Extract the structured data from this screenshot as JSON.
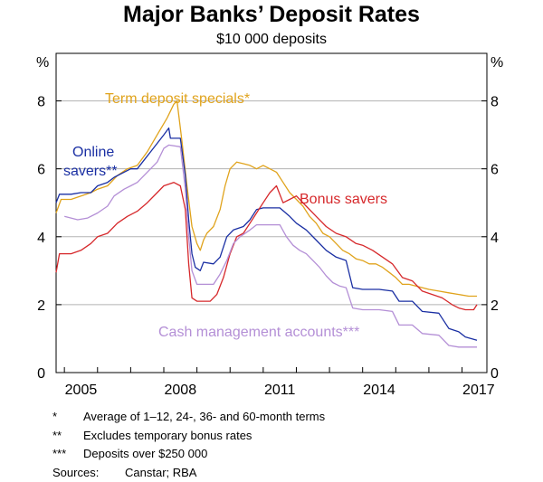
{
  "chart_data": {
    "type": "line",
    "title": "Major Banks’ Deposit Rates",
    "subtitle": "$10 000 deposits",
    "left_unit": "%",
    "right_unit": "%",
    "xlim": [
      2004.75,
      2017.75
    ],
    "ylim": [
      0,
      9.4
    ],
    "grid": true,
    "x_ticks": [
      2005,
      2008,
      2011,
      2014,
      2017
    ],
    "x_tick_labels": [
      "2005",
      "2008",
      "2011",
      "2014",
      "2017"
    ],
    "y_ticks": [
      0,
      2,
      4,
      6,
      8
    ],
    "y_tick_labels": [
      "0",
      "2",
      "4",
      "6",
      "8"
    ],
    "series": [
      {
        "name": "Term deposit specials*",
        "color": "#e0a31c",
        "points": [
          [
            2004.75,
            4.7
          ],
          [
            2004.9,
            5.1
          ],
          [
            2005.2,
            5.1
          ],
          [
            2005.5,
            5.2
          ],
          [
            2005.8,
            5.3
          ],
          [
            2006.0,
            5.4
          ],
          [
            2006.3,
            5.5
          ],
          [
            2006.6,
            5.8
          ],
          [
            2006.9,
            6.0
          ],
          [
            2007.2,
            6.1
          ],
          [
            2007.5,
            6.5
          ],
          [
            2007.8,
            7.0
          ],
          [
            2008.1,
            7.5
          ],
          [
            2008.3,
            7.9
          ],
          [
            2008.4,
            8.0
          ],
          [
            2008.55,
            6.8
          ],
          [
            2008.7,
            5.5
          ],
          [
            2008.85,
            4.3
          ],
          [
            2009.0,
            3.8
          ],
          [
            2009.1,
            3.6
          ],
          [
            2009.2,
            3.9
          ],
          [
            2009.3,
            4.1
          ],
          [
            2009.5,
            4.3
          ],
          [
            2009.7,
            4.8
          ],
          [
            2009.85,
            5.5
          ],
          [
            2010.0,
            6.0
          ],
          [
            2010.2,
            6.2
          ],
          [
            2010.4,
            6.15
          ],
          [
            2010.6,
            6.1
          ],
          [
            2010.8,
            6.0
          ],
          [
            2011.0,
            6.1
          ],
          [
            2011.2,
            6.0
          ],
          [
            2011.4,
            5.9
          ],
          [
            2011.6,
            5.6
          ],
          [
            2011.8,
            5.3
          ],
          [
            2012.0,
            5.1
          ],
          [
            2012.2,
            4.9
          ],
          [
            2012.4,
            4.6
          ],
          [
            2012.6,
            4.4
          ],
          [
            2012.8,
            4.1
          ],
          [
            2013.0,
            4.0
          ],
          [
            2013.2,
            3.8
          ],
          [
            2013.4,
            3.6
          ],
          [
            2013.6,
            3.5
          ],
          [
            2013.8,
            3.35
          ],
          [
            2014.0,
            3.3
          ],
          [
            2014.2,
            3.2
          ],
          [
            2014.4,
            3.2
          ],
          [
            2014.6,
            3.1
          ],
          [
            2014.8,
            2.95
          ],
          [
            2015.0,
            2.8
          ],
          [
            2015.2,
            2.6
          ],
          [
            2015.4,
            2.6
          ],
          [
            2015.6,
            2.55
          ],
          [
            2015.8,
            2.5
          ],
          [
            2016.0,
            2.45
          ],
          [
            2016.3,
            2.4
          ],
          [
            2016.6,
            2.35
          ],
          [
            2016.9,
            2.3
          ],
          [
            2017.2,
            2.25
          ],
          [
            2017.45,
            2.25
          ]
        ]
      },
      {
        "name": "Online savers**",
        "color": "#1a2fa3",
        "points": [
          [
            2004.75,
            5.0
          ],
          [
            2004.85,
            5.25
          ],
          [
            2005.2,
            5.25
          ],
          [
            2005.5,
            5.3
          ],
          [
            2005.8,
            5.3
          ],
          [
            2006.0,
            5.5
          ],
          [
            2006.3,
            5.6
          ],
          [
            2006.5,
            5.75
          ],
          [
            2006.8,
            5.9
          ],
          [
            2007.0,
            6.0
          ],
          [
            2007.2,
            6.0
          ],
          [
            2007.4,
            6.25
          ],
          [
            2007.6,
            6.5
          ],
          [
            2007.8,
            6.75
          ],
          [
            2008.0,
            7.0
          ],
          [
            2008.15,
            7.2
          ],
          [
            2008.2,
            6.9
          ],
          [
            2008.5,
            6.9
          ],
          [
            2008.65,
            5.8
          ],
          [
            2008.75,
            4.5
          ],
          [
            2008.85,
            3.5
          ],
          [
            2008.95,
            3.1
          ],
          [
            2009.1,
            3.0
          ],
          [
            2009.2,
            3.25
          ],
          [
            2009.5,
            3.2
          ],
          [
            2009.7,
            3.4
          ],
          [
            2009.9,
            4.0
          ],
          [
            2010.1,
            4.2
          ],
          [
            2010.4,
            4.3
          ],
          [
            2010.6,
            4.5
          ],
          [
            2010.8,
            4.8
          ],
          [
            2011.0,
            4.85
          ],
          [
            2011.5,
            4.85
          ],
          [
            2011.8,
            4.6
          ],
          [
            2012.0,
            4.4
          ],
          [
            2012.3,
            4.2
          ],
          [
            2012.6,
            3.9
          ],
          [
            2012.9,
            3.6
          ],
          [
            2013.2,
            3.4
          ],
          [
            2013.5,
            3.3
          ],
          [
            2013.7,
            2.5
          ],
          [
            2014.0,
            2.45
          ],
          [
            2014.5,
            2.45
          ],
          [
            2014.9,
            2.4
          ],
          [
            2015.1,
            2.1
          ],
          [
            2015.5,
            2.1
          ],
          [
            2015.8,
            1.8
          ],
          [
            2016.3,
            1.75
          ],
          [
            2016.6,
            1.3
          ],
          [
            2016.9,
            1.2
          ],
          [
            2017.1,
            1.05
          ],
          [
            2017.45,
            0.95
          ]
        ]
      },
      {
        "name": "Bonus savers",
        "color": "#d6282b",
        "points": [
          [
            2004.75,
            2.95
          ],
          [
            2004.85,
            3.5
          ],
          [
            2005.2,
            3.5
          ],
          [
            2005.5,
            3.6
          ],
          [
            2005.8,
            3.8
          ],
          [
            2006.0,
            4.0
          ],
          [
            2006.3,
            4.1
          ],
          [
            2006.6,
            4.4
          ],
          [
            2006.9,
            4.6
          ],
          [
            2007.2,
            4.75
          ],
          [
            2007.5,
            5.0
          ],
          [
            2007.8,
            5.3
          ],
          [
            2008.0,
            5.5
          ],
          [
            2008.3,
            5.6
          ],
          [
            2008.5,
            5.5
          ],
          [
            2008.65,
            4.8
          ],
          [
            2008.75,
            3.2
          ],
          [
            2008.85,
            2.2
          ],
          [
            2009.0,
            2.1
          ],
          [
            2009.4,
            2.1
          ],
          [
            2009.6,
            2.3
          ],
          [
            2009.8,
            2.8
          ],
          [
            2010.0,
            3.5
          ],
          [
            2010.2,
            4.0
          ],
          [
            2010.4,
            4.1
          ],
          [
            2010.6,
            4.4
          ],
          [
            2010.8,
            4.7
          ],
          [
            2011.0,
            5.0
          ],
          [
            2011.2,
            5.3
          ],
          [
            2011.4,
            5.5
          ],
          [
            2011.6,
            5.0
          ],
          [
            2011.8,
            5.1
          ],
          [
            2012.0,
            5.2
          ],
          [
            2012.3,
            4.9
          ],
          [
            2012.6,
            4.6
          ],
          [
            2012.9,
            4.3
          ],
          [
            2013.2,
            4.1
          ],
          [
            2013.5,
            4.0
          ],
          [
            2013.8,
            3.8
          ],
          [
            2014.0,
            3.75
          ],
          [
            2014.3,
            3.6
          ],
          [
            2014.6,
            3.4
          ],
          [
            2014.9,
            3.2
          ],
          [
            2015.2,
            2.8
          ],
          [
            2015.5,
            2.7
          ],
          [
            2015.8,
            2.4
          ],
          [
            2016.1,
            2.3
          ],
          [
            2016.4,
            2.2
          ],
          [
            2016.7,
            2.0
          ],
          [
            2016.9,
            1.9
          ],
          [
            2017.1,
            1.85
          ],
          [
            2017.35,
            1.85
          ],
          [
            2017.45,
            2.0
          ]
        ]
      },
      {
        "name": "Cash management accounts***",
        "color": "#b48fd6",
        "points": [
          [
            2005.0,
            4.6
          ],
          [
            2005.2,
            4.55
          ],
          [
            2005.4,
            4.5
          ],
          [
            2005.7,
            4.55
          ],
          [
            2006.0,
            4.7
          ],
          [
            2006.3,
            4.9
          ],
          [
            2006.5,
            5.2
          ],
          [
            2006.8,
            5.4
          ],
          [
            2007.0,
            5.5
          ],
          [
            2007.2,
            5.6
          ],
          [
            2007.5,
            5.9
          ],
          [
            2007.8,
            6.2
          ],
          [
            2008.0,
            6.6
          ],
          [
            2008.15,
            6.7
          ],
          [
            2008.5,
            6.65
          ],
          [
            2008.65,
            5.4
          ],
          [
            2008.75,
            4.0
          ],
          [
            2008.85,
            3.0
          ],
          [
            2009.0,
            2.6
          ],
          [
            2009.3,
            2.6
          ],
          [
            2009.5,
            2.6
          ],
          [
            2009.7,
            2.9
          ],
          [
            2009.9,
            3.3
          ],
          [
            2010.1,
            3.8
          ],
          [
            2010.3,
            4.0
          ],
          [
            2010.6,
            4.2
          ],
          [
            2010.8,
            4.35
          ],
          [
            2011.3,
            4.35
          ],
          [
            2011.5,
            4.35
          ],
          [
            2011.7,
            4.0
          ],
          [
            2011.9,
            3.75
          ],
          [
            2012.1,
            3.6
          ],
          [
            2012.3,
            3.5
          ],
          [
            2012.5,
            3.3
          ],
          [
            2012.7,
            3.1
          ],
          [
            2012.9,
            2.85
          ],
          [
            2013.1,
            2.65
          ],
          [
            2013.3,
            2.55
          ],
          [
            2013.5,
            2.5
          ],
          [
            2013.7,
            1.9
          ],
          [
            2014.0,
            1.85
          ],
          [
            2014.5,
            1.85
          ],
          [
            2014.9,
            1.8
          ],
          [
            2015.1,
            1.4
          ],
          [
            2015.5,
            1.4
          ],
          [
            2015.8,
            1.15
          ],
          [
            2016.3,
            1.1
          ],
          [
            2016.6,
            0.8
          ],
          [
            2016.9,
            0.75
          ],
          [
            2017.2,
            0.75
          ],
          [
            2017.45,
            0.75
          ]
        ]
      }
    ],
    "series_labels": [
      {
        "text": "Term deposit specials*",
        "color": "#e0a31c"
      },
      {
        "text": "Online",
        "color": "#1a2fa3"
      },
      {
        "text": "savers**",
        "color": "#1a2fa3"
      },
      {
        "text": "Bonus savers",
        "color": "#d6282b"
      },
      {
        "text": "Cash management accounts***",
        "color": "#b48fd6"
      }
    ]
  },
  "notes": [
    {
      "mark": "*",
      "text": "Average of 1–12, 24-, 36- and 60-month terms"
    },
    {
      "mark": "**",
      "text": "Excludes temporary bonus rates"
    },
    {
      "mark": "***",
      "text": "Deposits over $250 000"
    }
  ],
  "sources": {
    "label": "Sources:",
    "text": "Canstar; RBA"
  }
}
